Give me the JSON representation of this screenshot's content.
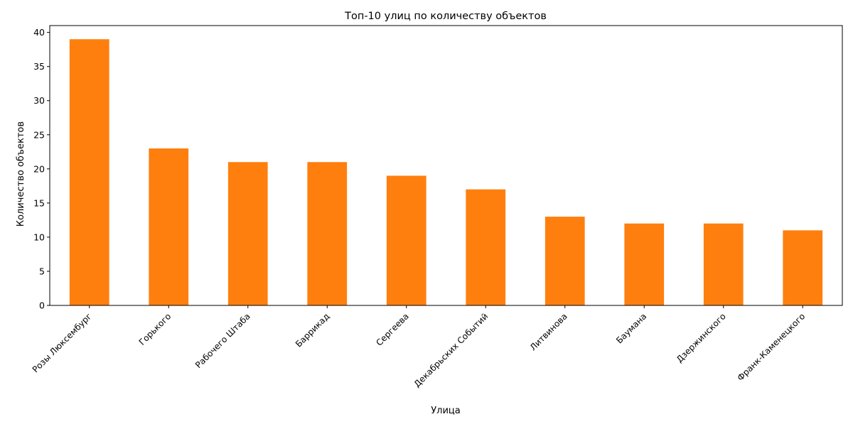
{
  "chart_data": {
    "type": "bar",
    "title": "Топ-10 улиц по количеству объектов",
    "xlabel": "Улица",
    "ylabel": "Количество объектов",
    "categories": [
      "Розы Люксембург",
      "Горького",
      "Рабочего Штаба",
      "Баррикад",
      "Сергеева",
      "Декабрьских Событий",
      "Литвинова",
      "Баумана",
      "Дзержинского",
      "Франк-Каменецкого"
    ],
    "values": [
      39,
      23,
      21,
      21,
      19,
      17,
      13,
      12,
      12,
      11
    ],
    "ylim": [
      0,
      41
    ],
    "yticks": [
      0,
      5,
      10,
      15,
      20,
      25,
      30,
      35,
      40
    ],
    "bar_color": "#ff7f0e",
    "grid": false,
    "legend": "none"
  }
}
